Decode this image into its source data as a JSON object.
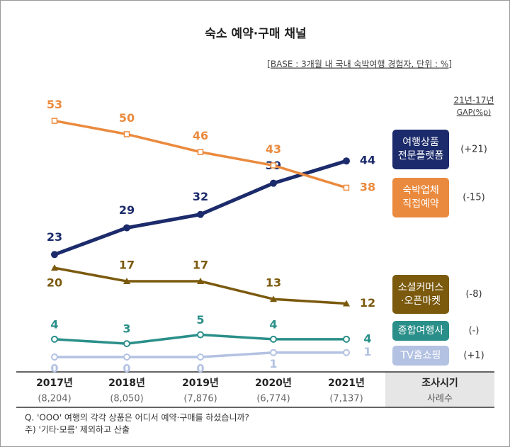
{
  "chart_data": {
    "type": "line",
    "title": "숙소 예약·구매 채널",
    "subtitle": "[BASE : 3개월 내 국내 숙박여행 경험자, 단위 : %]",
    "categories": [
      "2017년",
      "2018년",
      "2019년",
      "2020년",
      "2021년"
    ],
    "ylim": [
      0,
      55
    ],
    "gap_title": "21년-17년",
    "gap_unit": "GAP(%p)",
    "series": [
      {
        "name": "여행상품 전문플랫폼",
        "color": "#1c2b6b",
        "marker": "dot",
        "values": [
          23,
          29,
          32,
          39,
          44
        ],
        "gap": "(+21)"
      },
      {
        "name": "숙박업체 직접예약",
        "color": "#ea8a3e",
        "marker": "square",
        "values": [
          53,
          50,
          46,
          43,
          38
        ],
        "gap": "(-15)"
      },
      {
        "name": "소셜커머스 ·오픈마켓",
        "color": "#7b5a0e",
        "marker": "triangle",
        "values": [
          20,
          17,
          17,
          13,
          12
        ],
        "gap": "(-8)"
      },
      {
        "name": "종합여행사",
        "color": "#2a8f89",
        "marker": "ring",
        "values": [
          4,
          3,
          5,
          4,
          4
        ],
        "gap": "(-)"
      },
      {
        "name": "TV홈쇼핑",
        "color": "#b3c2e2",
        "marker": "ring",
        "values": [
          0,
          0,
          0,
          1,
          1
        ],
        "gap": "(+1)"
      }
    ],
    "sample_label": "조사시기",
    "sample_sub": "사례수",
    "sample_sizes": [
      8204,
      8050,
      7876,
      6774,
      7137
    ],
    "sample_size_labels": [
      "(8,204)",
      "(8,050)",
      "(7,876)",
      "(6,774)",
      "(7,137)"
    ],
    "notes": [
      "Q. 'OOO' 여행의 각각 상품은 어디서 예약·구매를 하셨습니까?",
      "주) '기타·모름' 제외하고 산출"
    ]
  }
}
